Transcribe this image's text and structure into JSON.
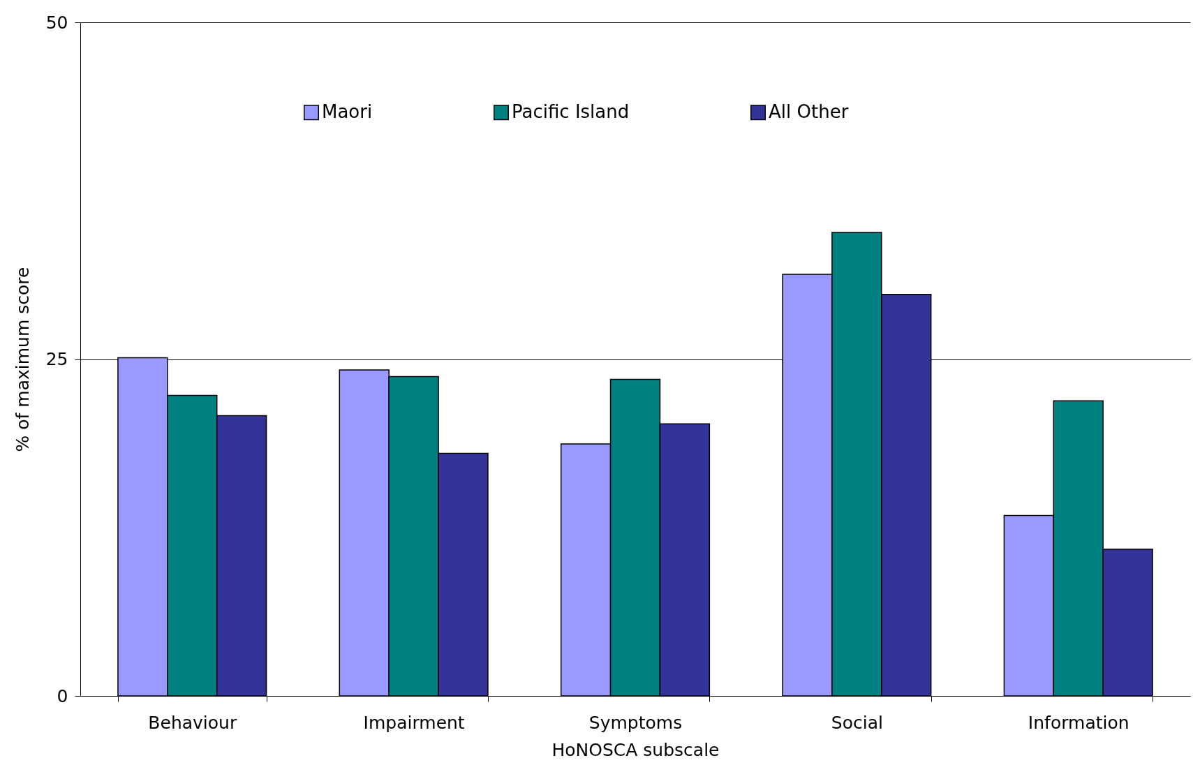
{
  "chart_data": {
    "type": "bar",
    "xlabel": "HoNOSCA subscale",
    "ylabel": "% of maximum score",
    "categories": [
      "Behaviour",
      "Impairment",
      "Symptoms",
      "Social",
      "Information"
    ],
    "series": [
      {
        "name": "Maori",
        "color": "#9999ff",
        "values": [
          25.1,
          24.2,
          18.7,
          31.3,
          13.4
        ]
      },
      {
        "name": "Pacific Island",
        "color": "#008080",
        "values": [
          22.3,
          23.7,
          23.5,
          34.4,
          21.9
        ]
      },
      {
        "name": "All Other",
        "color": "#333399",
        "values": [
          20.8,
          18.0,
          20.2,
          29.8,
          10.9
        ]
      }
    ],
    "ylim": [
      0,
      50
    ],
    "yticks": [
      0,
      25,
      50
    ],
    "grid": "y",
    "legend": "top"
  }
}
